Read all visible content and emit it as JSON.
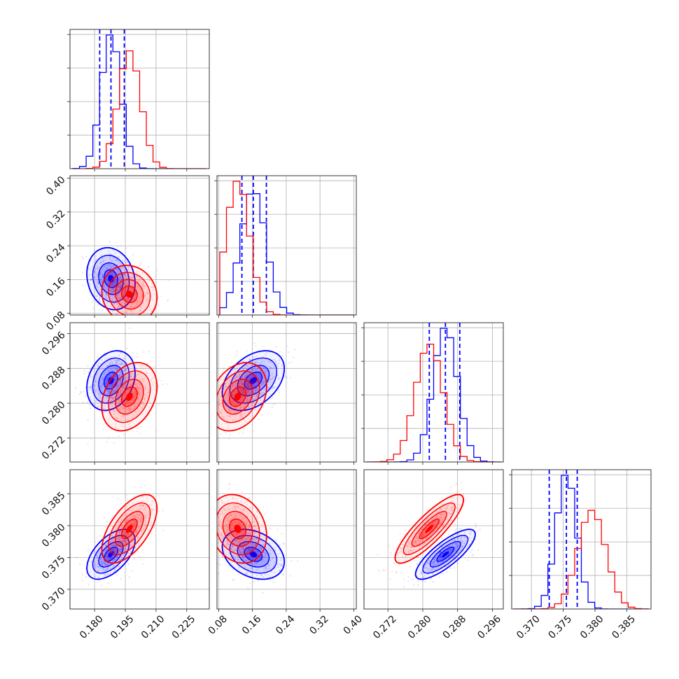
{
  "chart_data": {
    "type": "corner",
    "parameters": 4,
    "grid": true,
    "axis_ranges": [
      [
        0.168,
        0.236
      ],
      [
        0.076,
        0.406
      ],
      [
        0.2665,
        0.2985
      ],
      [
        0.3669,
        0.3888
      ]
    ],
    "tick_labels": [
      [
        "0.180",
        "0.195",
        "0.210",
        "0.225"
      ],
      [
        "0.08",
        "0.16",
        "0.24",
        "0.32",
        "0.40"
      ],
      [
        "0.272",
        "0.280",
        "0.288",
        "0.296"
      ],
      [
        "0.370",
        "0.375",
        "0.380",
        "0.385"
      ]
    ],
    "series": [
      {
        "color": "#0000ff",
        "means": [
          0.188,
          0.162,
          0.2852,
          0.3755
        ],
        "sds": [
          0.0048,
          0.03,
          0.0028,
          0.0016
        ],
        "corr": [
          [
            1,
            -0.15,
            0.25,
            0.55
          ],
          [
            -0.15,
            1,
            0.4,
            -0.3
          ],
          [
            0.25,
            0.4,
            1,
            0.8
          ],
          [
            0.55,
            -0.3,
            0.8,
            1
          ]
        ],
        "quantiles": [
          [
            0.1825,
            0.188,
            0.1945
          ],
          [
            0.135,
            0.162,
            0.193
          ],
          [
            0.2815,
            0.2852,
            0.2885
          ],
          [
            0.3728,
            0.3755,
            0.3772
          ]
        ]
      },
      {
        "color": "#ff0000",
        "means": [
          0.197,
          0.125,
          0.2815,
          0.3795
        ],
        "sds": [
          0.0055,
          0.028,
          0.0032,
          0.0022
        ],
        "corr": [
          [
            1,
            -0.1,
            0.3,
            0.6
          ],
          [
            -0.1,
            1,
            0.3,
            -0.2
          ],
          [
            0.3,
            0.3,
            1,
            0.85
          ],
          [
            0.6,
            -0.2,
            0.85,
            1
          ]
        ],
        "quantiles": null
      }
    ]
  }
}
